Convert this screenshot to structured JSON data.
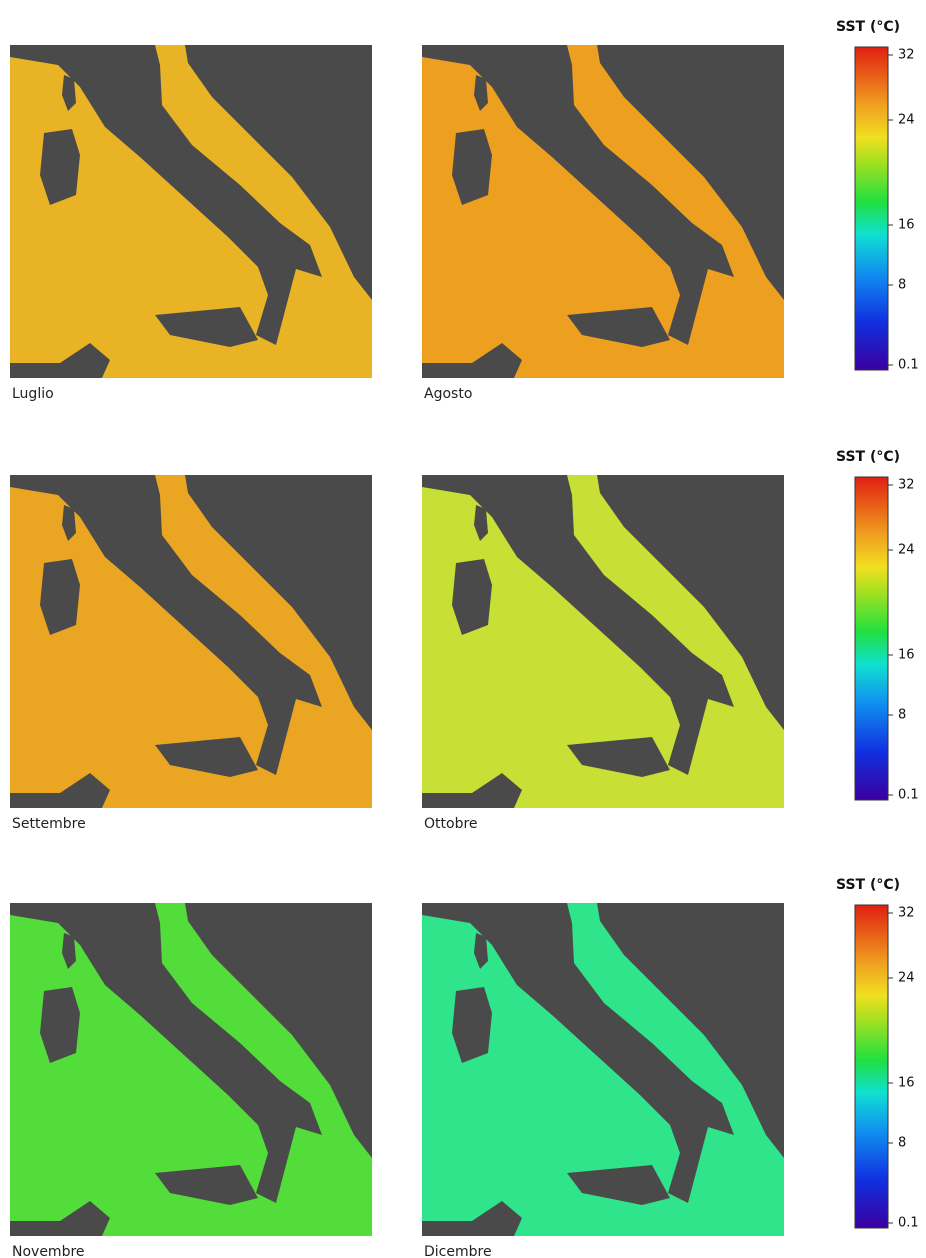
{
  "panels": [
    {
      "label": "Luglio",
      "color": "#e8b425"
    },
    {
      "label": "Agosto",
      "color": "#eda020"
    },
    {
      "label": "Settembre",
      "color": "#eaa523"
    },
    {
      "label": "Ottobre",
      "color": "#c8e035"
    },
    {
      "label": "Novembre",
      "color": "#52dd3a"
    },
    {
      "label": "Dicembre",
      "color": "#2fe48a"
    }
  ],
  "colorbars": [
    {
      "title": "SST (°C)",
      "ticks": [
        32,
        24,
        16,
        8,
        0.1
      ]
    },
    {
      "title": "SST (°C)",
      "ticks": [
        32,
        24,
        16,
        8,
        0.1
      ]
    },
    {
      "title": "SST (°C)",
      "ticks": [
        32,
        24,
        16,
        8,
        0.1
      ]
    }
  ]
}
